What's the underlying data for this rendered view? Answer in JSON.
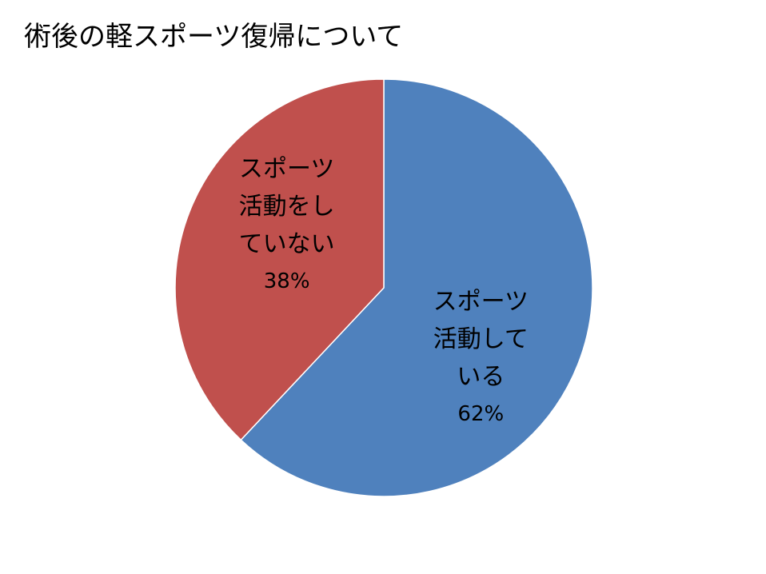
{
  "chart_data": {
    "type": "pie",
    "title": "術後の軽スポーツ復帰について",
    "categories": [
      "スポーツ活動している",
      "スポーツ活動をしていない"
    ],
    "values": [
      62,
      38
    ],
    "value_labels": [
      "62%",
      "38%"
    ],
    "colors": [
      "#4f81bd",
      "#c0504d"
    ]
  }
}
